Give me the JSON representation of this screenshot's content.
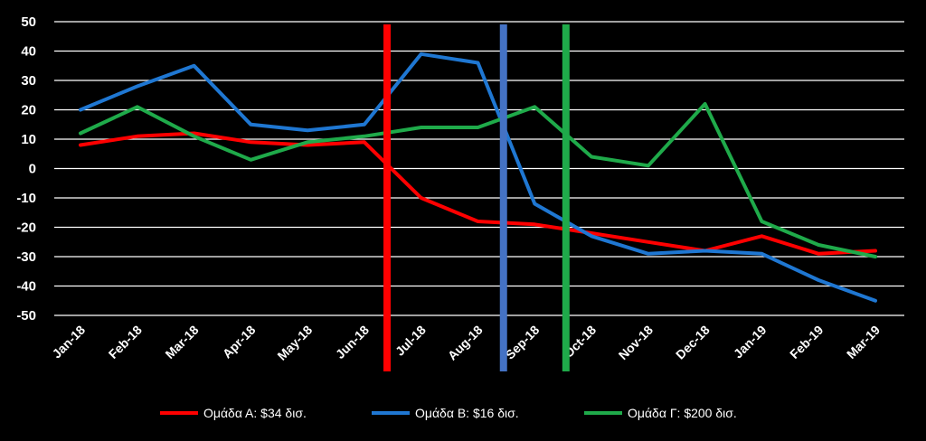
{
  "chart_data": {
    "type": "line",
    "categories": [
      "Jan-18",
      "Feb-18",
      "Mar-18",
      "Apr-18",
      "May-18",
      "Jun-18",
      "Jul-18",
      "Aug-18",
      "Sep-18",
      "Oct-18",
      "Nov-18",
      "Dec-18",
      "Jan-19",
      "Feb-19",
      "Mar-19"
    ],
    "ylim": [
      -50,
      50
    ],
    "yticks": [
      50,
      40,
      30,
      20,
      10,
      0,
      -10,
      -20,
      -30,
      -40,
      -50
    ],
    "grid": true,
    "legend_position": "bottom",
    "series": [
      {
        "name": "Ομάδα Α: $34 δισ.",
        "color": "#ff0000",
        "values": [
          8,
          11,
          12,
          9,
          8,
          9,
          -10,
          -18,
          -19,
          -22,
          -25,
          -28,
          -23,
          -29,
          -28
        ]
      },
      {
        "name": "Ομάδα Β: $16 δισ.",
        "color": "#1f77d2",
        "values": [
          20,
          28,
          35,
          15,
          13,
          15,
          39,
          36,
          -12,
          -23,
          -29,
          -28,
          -29,
          -38,
          -45
        ]
      },
      {
        "name": "Ομάδα Γ: $200 δισ.",
        "color": "#1faa4a",
        "values": [
          12,
          21,
          11,
          3,
          9,
          11,
          14,
          14,
          21,
          4,
          1,
          22,
          -18,
          -26,
          -30
        ]
      }
    ],
    "vertical_markers": [
      {
        "x_index": 5.4,
        "color": "#ff0000"
      },
      {
        "x_index": 7.45,
        "color": "#4472c4"
      },
      {
        "x_index": 8.55,
        "color": "#1faa4a"
      }
    ]
  }
}
